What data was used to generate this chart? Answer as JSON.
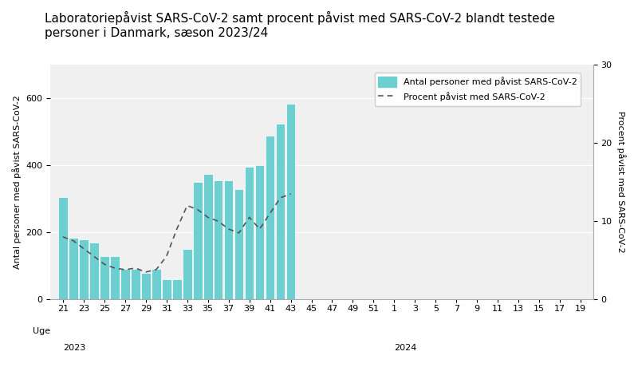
{
  "title_line1": "Laboratoriepåvist SARS-CoV-2 samt procent påvist med SARS-CoV-2 blandt testede",
  "title_line2": "personer i Danmark, sæson 2023/24",
  "ylabel_left": "Antal personer med påvist SARS-CoV-2",
  "ylabel_right": "Procent påvist med SARS-CoV-2",
  "xlabel_prefix": "Uge",
  "bar_color": "#6dcfcf",
  "line_color": "#555555",
  "bg_color": "#f0f0f0",
  "week_labels": [
    "21",
    "23",
    "25",
    "27",
    "29",
    "31",
    "33",
    "35",
    "37",
    "39",
    "41",
    "43",
    "45",
    "47",
    "49",
    "51",
    "1",
    "3",
    "5",
    "7",
    "9",
    "11",
    "13",
    "15",
    "17",
    "19"
  ],
  "bar_weeks_int": [
    21,
    22,
    23,
    24,
    25,
    26,
    27,
    28,
    29,
    30,
    31,
    32,
    33,
    34,
    35,
    36,
    37,
    38,
    39,
    40,
    41,
    42,
    43
  ],
  "bar_values": [
    305,
    185,
    180,
    170,
    130,
    130,
    90,
    90,
    80,
    90,
    60,
    60,
    150,
    350,
    375,
    355,
    355,
    330,
    395,
    400,
    490,
    525,
    585
  ],
  "line_weeks_int": [
    21,
    22,
    23,
    24,
    25,
    26,
    27,
    28,
    29,
    30,
    31,
    32,
    33,
    34,
    35,
    36,
    37,
    38,
    39,
    40,
    41,
    42,
    43
  ],
  "line_values": [
    8.0,
    7.5,
    6.5,
    5.5,
    4.5,
    4.0,
    3.8,
    4.0,
    3.5,
    3.8,
    5.5,
    9.0,
    12.0,
    11.5,
    10.5,
    10.0,
    9.0,
    8.5,
    10.5,
    9.0,
    11.0,
    13.0,
    13.5
  ],
  "ylim_left": [
    0,
    700
  ],
  "ylim_right": [
    0,
    30
  ],
  "yticks_left": [
    0,
    200,
    400,
    600
  ],
  "yticks_right": [
    0,
    10,
    20,
    30
  ],
  "legend_bar_label": "Antal personer med påvist SARS-CoV-2",
  "legend_line_label": "Procent påvist med SARS-CoV-2",
  "title_fontsize": 11,
  "axis_fontsize": 8,
  "tick_fontsize": 8,
  "legend_fontsize": 8,
  "year2023_tick_idx": 0,
  "year2024_tick_idx": 16
}
